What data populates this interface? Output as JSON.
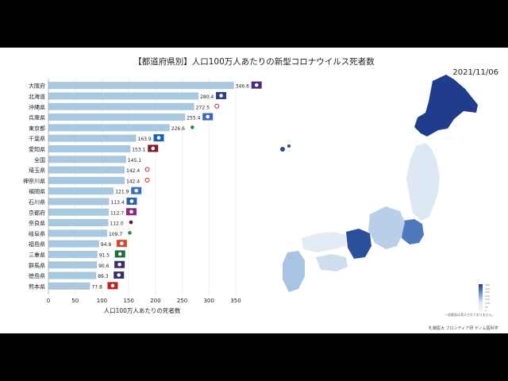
{
  "title": "【都道府県別】人口100万人あたりの新型コロナウイルス死者数",
  "date": "2021/11/06",
  "note": "一部離島は表示されておりません。",
  "credit": "札幌医大 フロンティア研 ゲノム医科学",
  "colors": {
    "bar": "#a8c8e0",
    "map_high": "#1f3d8a",
    "map_low": "#eef3f9",
    "land": "#c9daed"
  },
  "chart_data": {
    "type": "bar",
    "orientation": "horizontal",
    "categories": [
      "大阪府",
      "北海道",
      "沖縄県",
      "兵庫県",
      "東京都",
      "千葉県",
      "愛知県",
      "全国",
      "埼玉県",
      "神奈川県",
      "福岡県",
      "石川県",
      "京都府",
      "奈良県",
      "岐阜県",
      "福島県",
      "三重県",
      "群馬県",
      "徳島県",
      "熊本県"
    ],
    "values": [
      346.6,
      280.4,
      272.5,
      255.4,
      226.6,
      163.9,
      153.1,
      145.1,
      142.4,
      142.4,
      121.9,
      113.4,
      112.7,
      112.0,
      109.7,
      94.8,
      91.5,
      90.6,
      89.3,
      77.8
    ],
    "value_labels": [
      "346.6",
      "280.4",
      "272.5",
      "255.4",
      "226.6",
      "163.9",
      "153.1",
      "145.1",
      "142.4",
      "142.4",
      "121.9",
      "113.4",
      "112.7",
      "112.0",
      "109.7",
      "94.8",
      "91.5",
      "90.6",
      "89.3",
      "77.8"
    ],
    "xlabel": "人口100万人あたりの死者数",
    "xlim": [
      0,
      350
    ],
    "xticks": [
      0,
      50,
      100,
      150,
      200,
      250,
      300,
      350
    ],
    "xtick_labels": [
      "0",
      "50",
      "100",
      "150",
      "200",
      "250",
      "300",
      "350"
    ],
    "grid": true
  },
  "map_legend_ticks": [
    "350",
    "300",
    "250",
    "200",
    "150",
    "100",
    "50",
    "0"
  ],
  "flags": [
    {
      "color": "#4b2a86",
      "icon": "star"
    },
    {
      "color": "#2b3f86",
      "icon": "star"
    },
    {
      "color": "#ffffff",
      "icon": "ring-red"
    },
    {
      "color": "#3f68b3",
      "icon": "stripes"
    },
    {
      "color": "#ffffff",
      "icon": "ginkgo"
    },
    {
      "color": "#1d5fa8",
      "icon": "flower"
    },
    {
      "color": "#7a1f2a",
      "icon": "crest"
    },
    {
      "color": "#ffffff",
      "icon": "none"
    },
    {
      "color": "#ffffff",
      "icon": "ring-red"
    },
    {
      "color": "#ffffff",
      "icon": "ring-red"
    },
    {
      "color": "#3a6fc4",
      "icon": "flower"
    },
    {
      "color": "#2f61ad",
      "icon": "wave"
    },
    {
      "color": "#8b2b82",
      "icon": "flower"
    },
    {
      "color": "#ffffff",
      "icon": "dot"
    },
    {
      "color": "#ffffff",
      "icon": "green"
    },
    {
      "color": "#d34b2a",
      "icon": "crest"
    },
    {
      "color": "#1f6b3a",
      "icon": "crest"
    },
    {
      "color": "#3b2d6e",
      "icon": "crest"
    },
    {
      "color": "#3c2d6b",
      "icon": "crest"
    },
    {
      "color": "#b8231b",
      "icon": "crest"
    }
  ]
}
